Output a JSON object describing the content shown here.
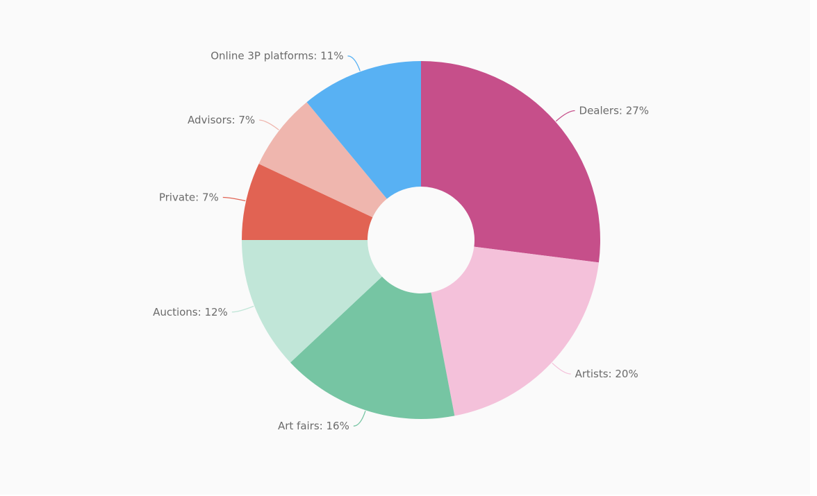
{
  "chart_data": {
    "type": "pie",
    "donut": true,
    "slices": [
      {
        "label": "Dealers: 27%",
        "name": "Dealers",
        "value": 27,
        "color": "#c64f8a"
      },
      {
        "label": "Artists: 20%",
        "name": "Artists",
        "value": 20,
        "color": "#f4c1da"
      },
      {
        "label": "Art fairs: 16%",
        "name": "Art fairs",
        "value": 16,
        "color": "#76c5a3"
      },
      {
        "label": "Auctions: 12%",
        "name": "Auctions",
        "value": 12,
        "color": "#c1e6d8"
      },
      {
        "label": "Private: 7%",
        "name": "Private",
        "value": 7,
        "color": "#e16353"
      },
      {
        "label": "Advisors: 7%",
        "name": "Advisors",
        "value": 7,
        "color": "#efb6ae"
      },
      {
        "label": "Online 3P platforms: 11%",
        "name": "Online 3P platforms",
        "value": 11,
        "color": "#58b1f3"
      }
    ],
    "start_angle": "top (12 o'clock)",
    "direction": "clockwise",
    "legend": "none",
    "title": ""
  }
}
